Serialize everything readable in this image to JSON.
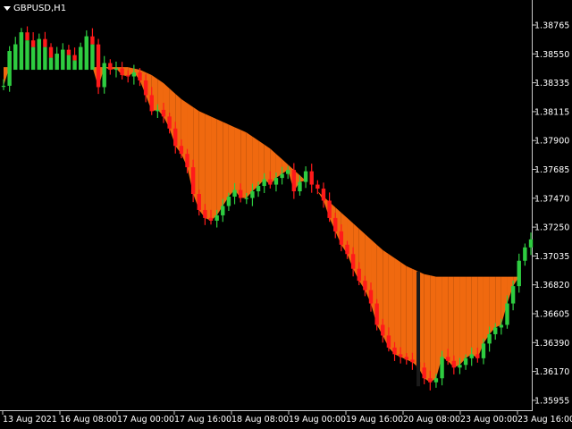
{
  "window": {
    "symbol": "GBPUSD,H1"
  },
  "colors": {
    "bull": "#2ecc40",
    "bear": "#ff1a1a",
    "fill": "#f0690f",
    "grid": "#c8c8c8",
    "bg": "#000000",
    "text": "#ffffff"
  },
  "chart_data": {
    "type": "area",
    "y_axis": {
      "ticks": [
        "1.38765",
        "1.38550",
        "1.38335",
        "1.38115",
        "1.37900",
        "1.37685",
        "1.37470",
        "1.37250",
        "1.37035",
        "1.36820",
        "1.36605",
        "1.36390",
        "1.36170",
        "1.35955"
      ],
      "range": [
        1.35955,
        1.38765
      ]
    },
    "x_axis": {
      "ticks": [
        "13 Aug 2021",
        "16 Aug 08:00",
        "17 Aug 00:00",
        "17 Aug 16:00",
        "18 Aug 08:00",
        "19 Aug 00:00",
        "19 Aug 16:00",
        "20 Aug 08:00",
        "23 Aug 00:00",
        "23 Aug 16:00"
      ]
    },
    "price_series": [
      1.3831,
      1.3857,
      1.3862,
      1.3871,
      1.3865,
      1.386,
      1.3866,
      1.386,
      1.3852,
      1.3855,
      1.3858,
      1.3854,
      1.385,
      1.386,
      1.3868,
      1.3862,
      1.383,
      1.3848,
      1.3843,
      1.3844,
      1.3839,
      1.3838,
      1.3841,
      1.3835,
      1.3824,
      1.3812,
      1.3813,
      1.3808,
      1.3799,
      1.3786,
      1.378,
      1.377,
      1.375,
      1.3738,
      1.3732,
      1.373,
      1.3734,
      1.3741,
      1.3748,
      1.3753,
      1.3747,
      1.3747,
      1.3752,
      1.3756,
      1.3761,
      1.3757,
      1.3762,
      1.3765,
      1.3768,
      1.3752,
      1.3759,
      1.3767,
      1.3757,
      1.3754,
      1.3745,
      1.3732,
      1.3722,
      1.3712,
      1.3705,
      1.3694,
      1.3685,
      1.3678,
      1.3668,
      1.3652,
      1.3644,
      1.3635,
      1.363,
      1.3628,
      1.3626,
      1.3624,
      1.362,
      1.3612,
      1.3609,
      1.3612,
      1.3628,
      1.3625,
      1.362,
      1.3622,
      1.3627,
      1.363,
      1.3627,
      1.3638,
      1.3645,
      1.365,
      1.3652,
      1.3668,
      1.3681,
      1.37,
      1.371,
      1.3716
    ],
    "band_series": [
      1.3845,
      1.3845,
      1.3845,
      1.3845,
      1.3845,
      1.3845,
      1.3845,
      1.3845,
      1.3845,
      1.3845,
      1.3845,
      1.3845,
      1.3845,
      1.3845,
      1.3845,
      1.3845,
      1.3845,
      1.3845,
      1.3845,
      1.3845,
      1.3845,
      1.3845,
      1.3844,
      1.3843,
      1.3841,
      1.3839,
      1.3836,
      1.3833,
      1.3829,
      1.3825,
      1.3821,
      1.3818,
      1.3815,
      1.3812,
      1.381,
      1.3808,
      1.3806,
      1.3804,
      1.3802,
      1.38,
      1.3798,
      1.3796,
      1.3793,
      1.379,
      1.3787,
      1.3784,
      1.378,
      1.3776,
      1.3772,
      1.3768,
      1.3764,
      1.376,
      1.3756,
      1.3752,
      1.3748,
      1.3744,
      1.374,
      1.3736,
      1.3732,
      1.3728,
      1.3724,
      1.372,
      1.3716,
      1.3712,
      1.3708,
      1.3705,
      1.3702,
      1.3699,
      1.3696,
      1.3694,
      1.3692,
      1.369,
      1.3689,
      1.3688,
      1.3688,
      1.3688,
      1.3688,
      1.3688,
      1.3688,
      1.3688,
      1.3688,
      1.3688,
      1.3688,
      1.3688,
      1.3688,
      1.3688,
      1.3688,
      1.3688,
      1.3688,
      1.3688
    ],
    "vertical_marker_index": 70
  }
}
